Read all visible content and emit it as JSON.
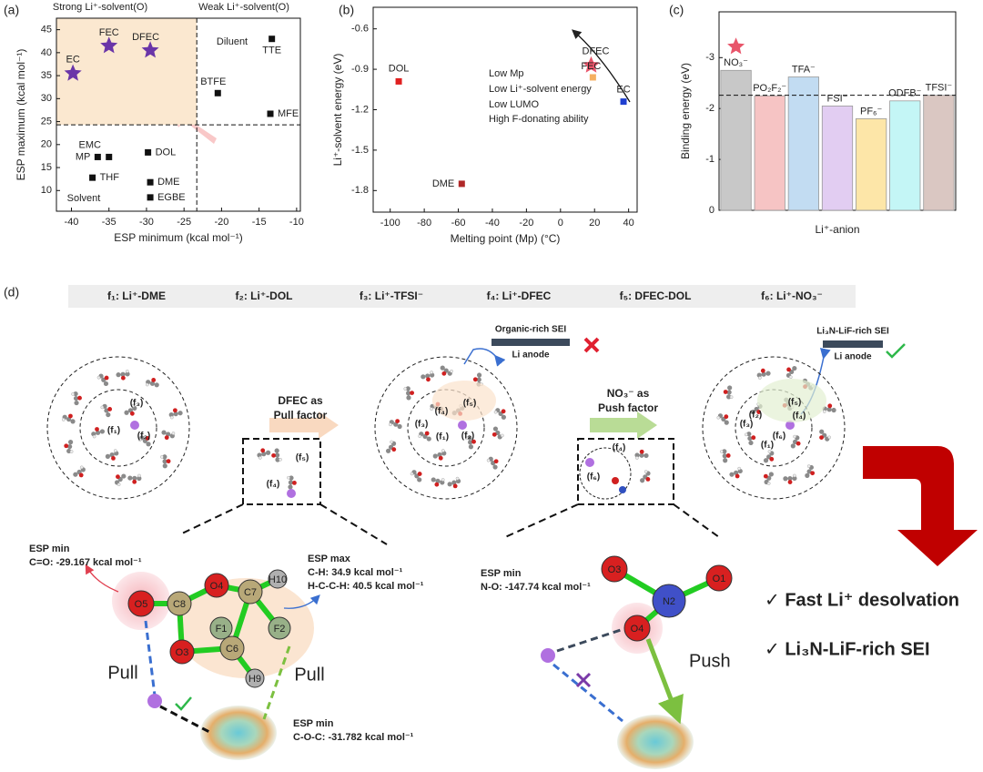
{
  "chart_data": [
    {
      "type": "scatter",
      "panel": "(a)",
      "xlabel": "ESP minimum (kcal mol⁻¹)",
      "ylabel": "ESP maximum (kcal mol⁻¹)",
      "xlim": [
        -42,
        -9.5
      ],
      "ylim": [
        5.5,
        47.5
      ],
      "xticks": [
        -40,
        -35,
        -30,
        -25,
        -20,
        -15,
        -10
      ],
      "yticks": [
        10,
        15,
        20,
        25,
        30,
        35,
        40,
        45
      ],
      "threshold_x": -23.3,
      "threshold_y": 24.3,
      "annotations": [
        "Strong Li⁺-solvent(O)",
        "Weak Li⁺-solvent(O)",
        "Diluent",
        "Solvent"
      ],
      "annotation_colors": [
        "#c0392b",
        "#1a7a6a",
        "#555555",
        "#283593"
      ],
      "series": [
        {
          "marker": "star",
          "color": "#6a35a8",
          "labels": [
            "EC",
            "FEC",
            "DFEC"
          ],
          "x": [
            -39.8,
            -35,
            -29.5
          ],
          "values": [
            35.5,
            41.5,
            40.5
          ]
        },
        {
          "marker": "square",
          "color": "#111111",
          "labels": [
            "TTE",
            "BTFE",
            "MFE",
            "EMC",
            "MP",
            "THF",
            "DOL",
            "DME",
            "EGBE"
          ],
          "x": [
            -13.3,
            -20.5,
            -13.5,
            -35,
            -36.5,
            -37.2,
            -29.8,
            -29.5,
            -29.5
          ],
          "values": [
            43,
            31.2,
            26.7,
            17.3,
            17.3,
            12.8,
            18.3,
            11.8,
            8.5
          ]
        }
      ]
    },
    {
      "type": "scatter",
      "panel": "(b)",
      "xlabel": "Melting point (Mp) (°C)",
      "ylabel": "Li⁺-solvent energy (eV)",
      "xlim": [
        -110,
        45
      ],
      "ylim": [
        -1.96,
        -0.44
      ],
      "xticks": [
        -100,
        -80,
        -60,
        -40,
        -20,
        0,
        20,
        40
      ],
      "yticks": [
        -1.8,
        -1.5,
        -1.2,
        -0.9,
        -0.6
      ],
      "annotations": [
        "Low Mp",
        "Low Li⁺-solvent energy",
        "Low LUMO",
        "High F-donating ability"
      ],
      "annotation_colors": [
        "#2ecc71",
        "#4fd3e3",
        "#4a6fe3",
        "#b05ce0"
      ],
      "series": [
        {
          "markers": [
            "square",
            "square",
            "star",
            "square",
            "square"
          ],
          "colors": [
            "#e02020",
            "#b02828",
            "#e8556a",
            "#f5b060",
            "#1f3fd0"
          ],
          "labels": [
            "DOL",
            "DME",
            "DFEC",
            "FEC",
            "EC"
          ],
          "x": [
            -95,
            -58,
            18,
            19,
            37
          ],
          "values": [
            -0.99,
            -1.75,
            -0.87,
            -0.96,
            -1.14
          ]
        }
      ]
    },
    {
      "type": "bar",
      "panel": "(c)",
      "xlabel": "Li⁺-anion",
      "ylabel": "Binding energy (eV)",
      "ylim": [
        0,
        -3.9
      ],
      "yticks": [
        0,
        -1,
        -2,
        -3
      ],
      "reference_line": -2.26,
      "categories": [
        "NO₃⁻",
        "PO₂F₂⁻",
        "TFA⁻",
        "FSI⁻",
        "PF₆⁻",
        "ODFB⁻",
        "TFSI⁻"
      ],
      "values": [
        -2.75,
        -2.25,
        -2.62,
        -2.05,
        -1.8,
        -2.15,
        -2.26
      ],
      "colors": [
        "#c8c8c8",
        "#f6c4c4",
        "#c2dcf2",
        "#e2cdf2",
        "#fde6a8",
        "#c4f6f6",
        "#dac7c2"
      ]
    }
  ],
  "diagram": {
    "label": "(d)",
    "legend": [
      "f₁: Li⁺-DME",
      "f₂: Li⁺-DOL",
      "f₃: Li⁺-TFSI⁻",
      "f₄: Li⁺-DFEC",
      "f₅: DFEC-DOL",
      "f₆: Li⁺-NO₃⁻"
    ],
    "cluster1": [
      "(f₃)",
      "(f₁)",
      "(f₂)"
    ],
    "cluster2": [
      "(f₄)",
      "(f₅)",
      "(f₃)",
      "(f₁)",
      "(f₂)"
    ],
    "cluster3": [
      "(f₅)",
      "(f₂)",
      "(f₄)",
      "(f₃)",
      "(f₁)",
      "(f₆)"
    ],
    "box1": [
      "(f₅)",
      "(f₄)"
    ],
    "box2": [
      "(f₄)",
      "(f₆)"
    ],
    "pull_factor": [
      "DFEC as",
      "Pull factor"
    ],
    "push_factor": [
      "NO₃⁻ as",
      "Push factor"
    ],
    "sei_organic": "Organic-rich SEI",
    "li_anode": "Li anode",
    "sei_inorganic": "Li₃N-LiF-rich SEI",
    "li_anode_2": "Li anode",
    "esp_co": [
      "ESP min",
      "C=O: -29.167 kcal mol⁻¹"
    ],
    "esp_ch": [
      "ESP max",
      "C-H: 34.9 kcal mol⁻¹",
      "H-C-C-H: 40.5 kcal mol⁻¹"
    ],
    "esp_coc": [
      "ESP min",
      "C-O-C: -31.782 kcal mol⁻¹"
    ],
    "esp_no": [
      "ESP min",
      "N-O: -147.74 kcal mol⁻¹"
    ],
    "dfec_atoms": [
      "O5",
      "C8",
      "O4",
      "C7",
      "H10",
      "F1",
      "F2",
      "C6",
      "O3",
      "H9"
    ],
    "no3_atoms": [
      "N2",
      "O3",
      "O1",
      "O4"
    ],
    "pull": [
      "Pull",
      "Pull"
    ],
    "push": "Push",
    "outcomes": [
      "✓ Fast Li⁺ desolvation",
      "✓ Li₃N-LiF-rich SEI"
    ]
  }
}
